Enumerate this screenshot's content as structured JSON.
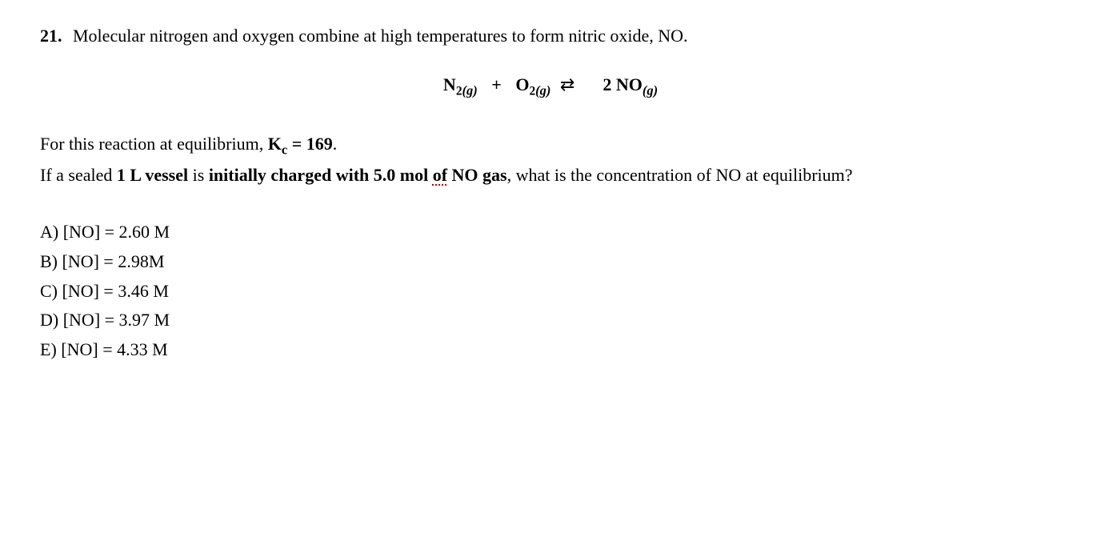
{
  "question": {
    "number": "21.",
    "intro": "Molecular nitrogen and oxygen combine at high temperatures to form nitric oxide, NO."
  },
  "equation": {
    "reactant1_base": "N",
    "reactant1_sub": "2",
    "reactant1_state": "(g)",
    "plus": "+",
    "reactant2_base": "O",
    "reactant2_sub": "2",
    "reactant2_state": "(g)",
    "arrow": "⇄",
    "product_coeff": "2 NO",
    "product_state": "(g)"
  },
  "kc": {
    "prefix": "For this reaction at equilibrium, ",
    "kc_label": "K",
    "kc_sub": "c",
    "kc_value": " = 169",
    "suffix": "."
  },
  "charge": {
    "part1": "If a sealed ",
    "bold1": "1 L vessel",
    "part2": " is ",
    "bold2": "initially charged with 5.0 mol ",
    "bold_of": "of",
    "bold3": " NO gas",
    "part3": ", what is the concentration of NO at equilibrium?"
  },
  "choices": {
    "a": "A)  [NO] = 2.60 M",
    "b": "B)  [NO] = 2.98M",
    "c": "C)  [NO] = 3.46 M",
    "d": "D)  [NO] = 3.97 M",
    "e": "E)  [NO] = 4.33 M"
  },
  "style": {
    "font_family": "Times New Roman",
    "font_size_pt": 17,
    "text_color": "#000000",
    "background_color": "#ffffff",
    "dotted_underline_color": "#c00000"
  }
}
